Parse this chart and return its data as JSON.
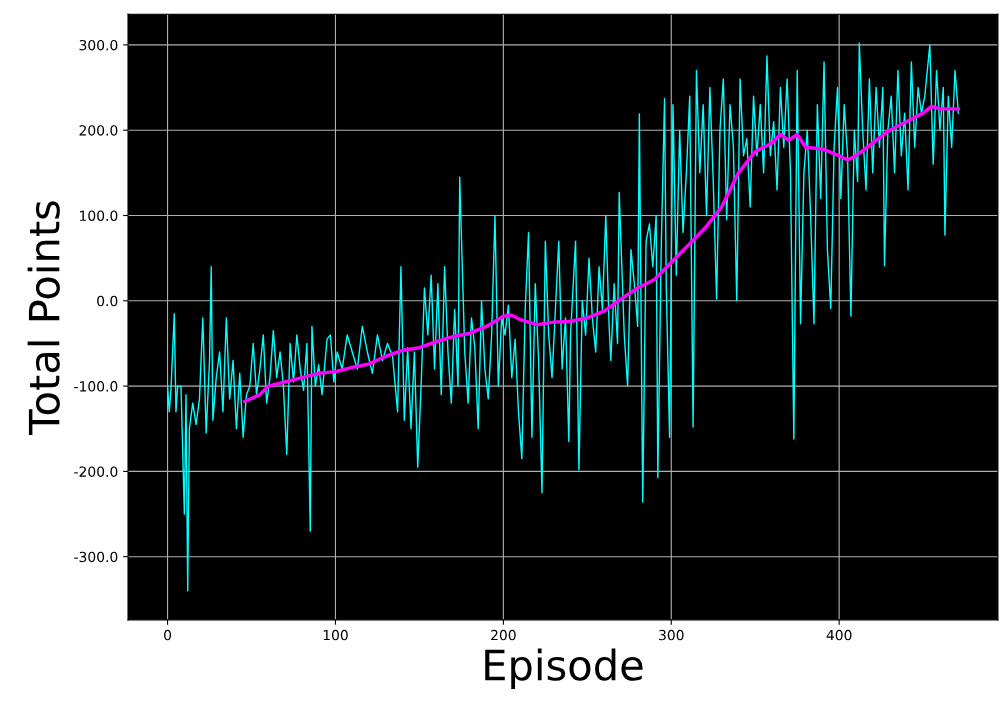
{
  "chart_data": {
    "type": "line",
    "xlabel": "Episode",
    "ylabel": "Total Points",
    "xlim": [
      -23.55,
      494.55
    ],
    "xticks": [
      0,
      100,
      200,
      300,
      400
    ],
    "ylim": [
      -374,
      336
    ],
    "yticks": [
      {
        "value": -300,
        "label": "-300.0"
      },
      {
        "value": -200,
        "label": "-200.0"
      },
      {
        "value": -100,
        "label": "-100.0"
      },
      {
        "value": 0,
        "label": "0.0"
      },
      {
        "value": 100,
        "label": "100.0"
      },
      {
        "value": 200,
        "label": "200.0"
      },
      {
        "value": 300,
        "label": "300.0"
      }
    ],
    "grid": true,
    "legend": false,
    "series": [
      {
        "color": "#00ffff",
        "x": [
          0,
          1,
          2,
          4,
          5,
          6,
          8,
          10,
          11,
          12,
          13,
          15,
          17,
          19,
          21,
          23,
          25,
          26,
          27,
          29,
          31,
          33,
          35,
          37,
          39,
          41,
          43,
          45,
          47,
          49,
          51,
          53,
          55,
          57,
          59,
          61,
          63,
          65,
          67,
          69,
          71,
          73,
          75,
          77,
          79,
          81,
          83,
          85,
          86,
          88,
          90,
          92,
          95,
          97,
          99,
          101,
          104,
          107,
          110,
          113,
          116,
          119,
          122,
          125,
          128,
          131,
          134,
          137,
          139,
          141,
          143,
          145,
          147,
          149,
          151,
          153,
          155,
          157,
          159,
          161,
          163,
          165,
          167,
          169,
          171,
          173,
          174,
          177,
          179,
          181,
          183,
          185,
          187,
          189,
          191,
          193,
          195,
          197,
          199,
          201,
          203,
          205,
          207,
          209,
          211,
          213,
          215,
          217,
          219,
          221,
          223,
          225,
          227,
          229,
          231,
          233,
          235,
          237,
          239,
          240,
          243,
          245,
          247,
          249,
          251,
          253,
          255,
          257,
          259,
          261,
          263,
          264,
          266,
          268,
          269,
          272,
          274,
          276,
          278,
          280,
          281,
          283,
          285,
          287,
          289,
          291,
          292,
          294,
          296,
          297,
          299,
          301,
          303,
          305,
          307,
          309,
          311,
          313,
          315,
          317,
          319,
          321,
          323,
          325,
          327,
          329,
          331,
          333,
          335,
          337,
          339,
          341,
          343,
          345,
          347,
          349,
          351,
          353,
          355,
          357,
          359,
          361,
          363,
          365,
          367,
          369,
          371,
          373,
          375,
          377,
          379,
          381,
          383,
          385,
          387,
          389,
          391,
          393,
          395,
          397,
          399,
          401,
          403,
          405,
          407,
          409,
          411,
          412,
          414,
          416,
          418,
          420,
          422,
          424,
          426,
          427,
          429,
          431,
          433,
          435,
          437,
          439,
          441,
          443,
          445,
          447,
          449,
          451,
          454,
          456,
          458,
          460,
          462,
          463,
          465,
          467,
          469,
          471
        ],
        "values": [
          -100,
          -130,
          -105,
          -15,
          -130,
          -100,
          -100,
          -250,
          -110,
          -340,
          -150,
          -120,
          -145,
          -115,
          -20,
          -155,
          -70,
          40,
          -140,
          -90,
          -60,
          -130,
          -20,
          -115,
          -70,
          -150,
          -85,
          -160,
          -110,
          -100,
          -50,
          -110,
          -80,
          -40,
          -120,
          -90,
          -35,
          -90,
          -60,
          -100,
          -180,
          -50,
          -95,
          -40,
          -80,
          -105,
          -50,
          -270,
          -30,
          -100,
          -75,
          -110,
          -45,
          -40,
          -95,
          -60,
          -80,
          -40,
          -60,
          -80,
          -30,
          -60,
          -85,
          -40,
          -70,
          -50,
          -65,
          -130,
          40,
          -140,
          -55,
          -150,
          -60,
          -195,
          -100,
          15,
          -40,
          30,
          -80,
          20,
          -110,
          40,
          -60,
          -120,
          -10,
          -100,
          145,
          -60,
          -120,
          -20,
          -55,
          -150,
          0,
          -80,
          -115,
          -40,
          100,
          -100,
          -20,
          -40,
          -5,
          -90,
          -45,
          -130,
          -185,
          -10,
          80,
          -160,
          20,
          -70,
          -225,
          70,
          -40,
          -90,
          -10,
          70,
          -80,
          -20,
          -165,
          -40,
          70,
          -198,
          0,
          -40,
          50,
          -20,
          -60,
          40,
          -10,
          100,
          -30,
          -70,
          20,
          -50,
          127,
          -40,
          -100,
          60,
          20,
          -30,
          219,
          -236,
          70,
          90,
          40,
          100,
          -207,
          60,
          237,
          20,
          -160,
          230,
          30,
          200,
          80,
          150,
          240,
          -148,
          270,
          150,
          230,
          100,
          250,
          140,
          2,
          200,
          260,
          95,
          230,
          180,
          0,
          260,
          170,
          190,
          110,
          240,
          170,
          230,
          150,
          287,
          170,
          210,
          130,
          250,
          180,
          260,
          150,
          -162,
          270,
          -27,
          150,
          200,
          100,
          -27,
          230,
          120,
          280,
          60,
          -9,
          180,
          250,
          120,
          230,
          170,
          -18,
          200,
          140,
          302,
          200,
          130,
          260,
          150,
          250,
          180,
          250,
          41,
          200,
          240,
          150,
          270,
          170,
          220,
          130,
          280,
          180,
          250,
          220,
          240,
          300,
          160,
          270,
          200,
          250,
          77,
          240,
          180,
          270,
          220
        ]
      },
      {
        "color": "#ff00ff",
        "x": [
          46,
          55,
          60,
          70,
          80,
          90,
          100,
          110,
          120,
          130,
          140,
          150,
          160,
          170,
          180,
          190,
          200,
          205,
          210,
          220,
          230,
          240,
          250,
          260,
          270,
          280,
          290,
          300,
          310,
          320,
          330,
          340,
          350,
          360,
          365,
          370,
          375,
          380,
          390,
          400,
          405,
          410,
          420,
          430,
          440,
          450,
          455,
          460,
          471
        ],
        "values": [
          -118,
          -110,
          -100,
          -95,
          -90,
          -85,
          -83,
          -78,
          -74,
          -65,
          -58,
          -55,
          -48,
          -42,
          -38,
          -30,
          -18,
          -17,
          -22,
          -28,
          -25,
          -24,
          -20,
          -12,
          2,
          15,
          25,
          45,
          65,
          85,
          110,
          150,
          175,
          185,
          195,
          188,
          195,
          180,
          178,
          170,
          165,
          170,
          185,
          200,
          210,
          220,
          228,
          225,
          225
        ]
      }
    ]
  }
}
